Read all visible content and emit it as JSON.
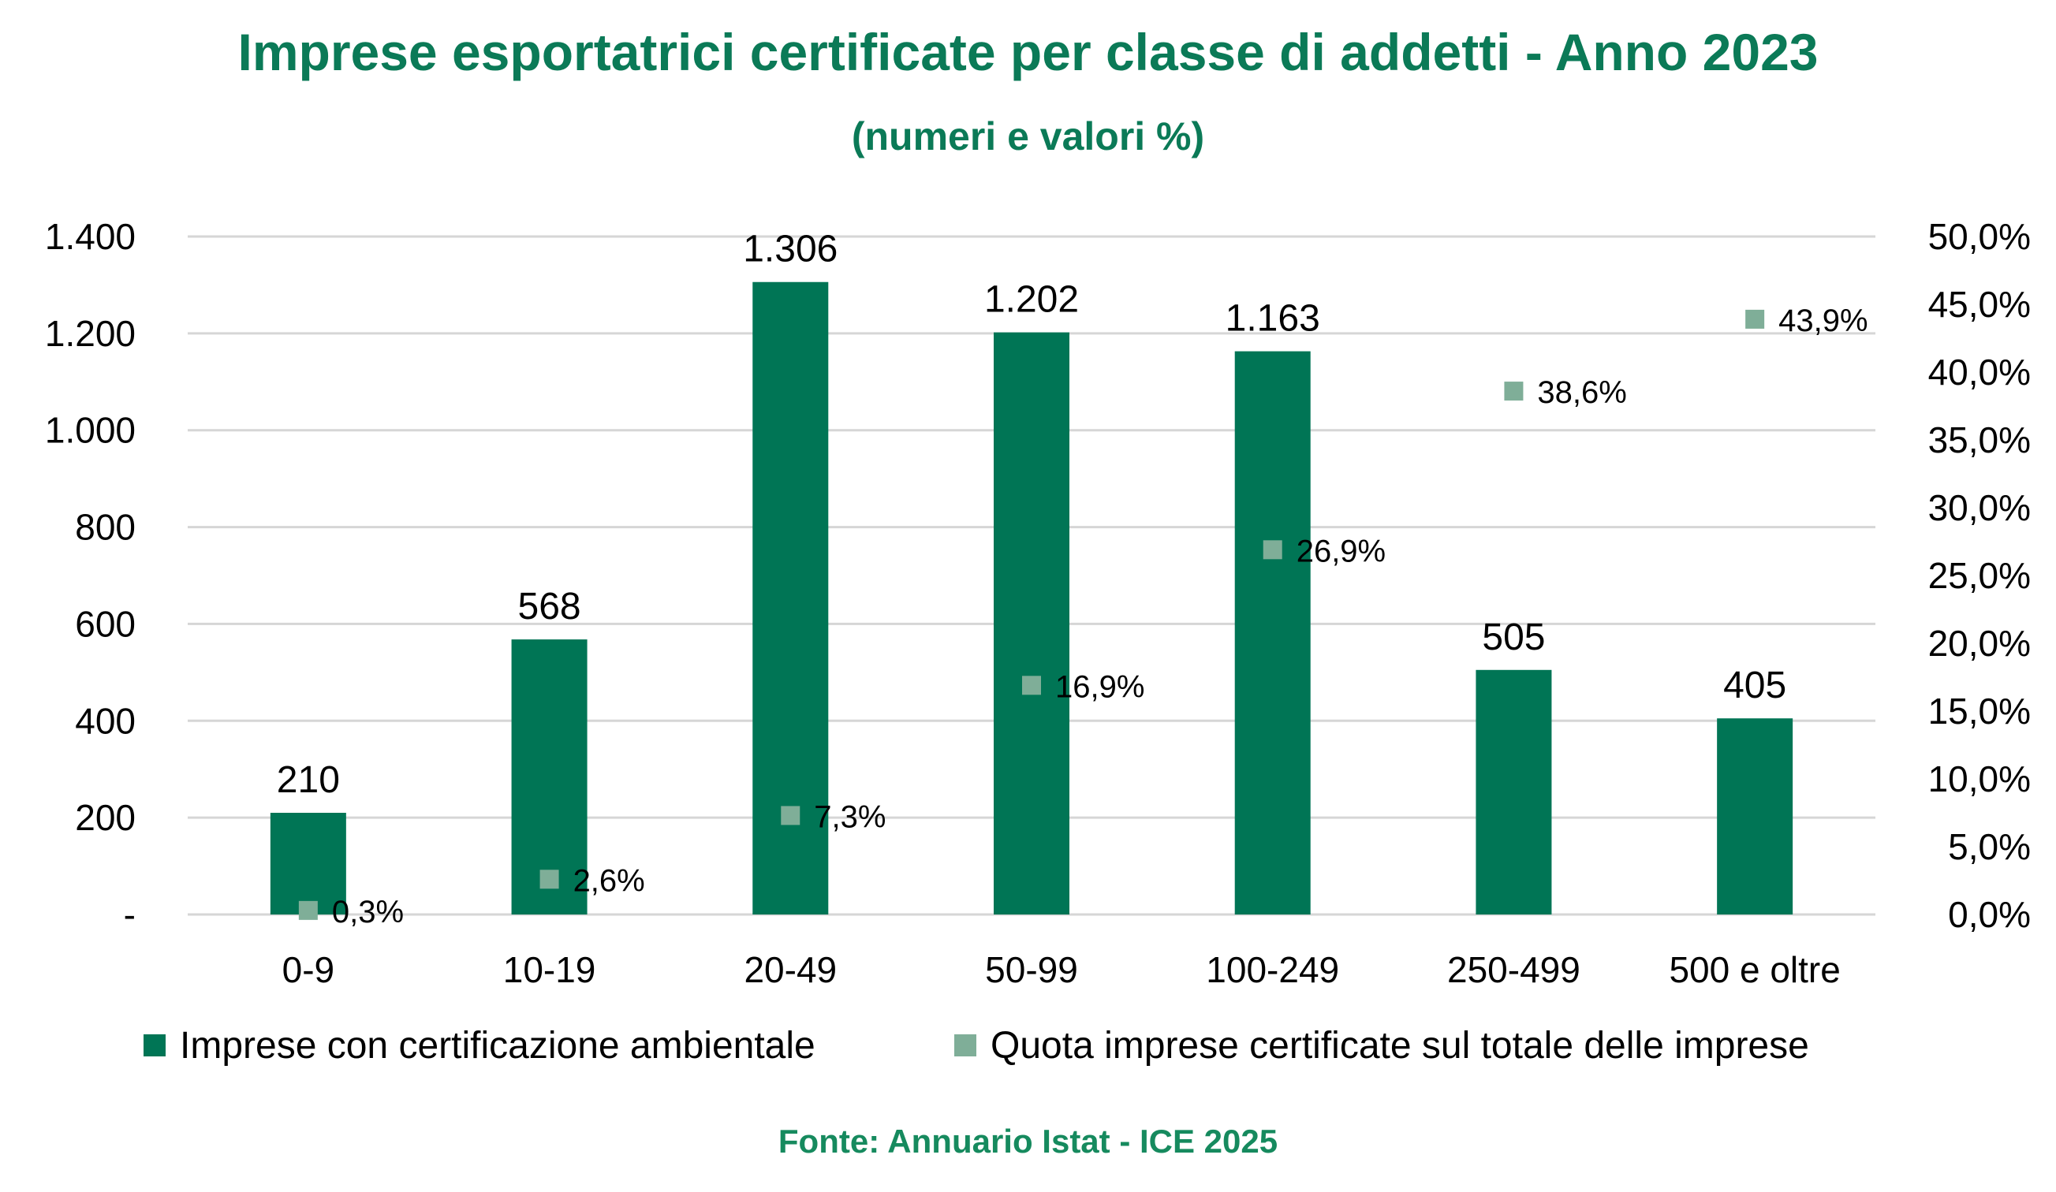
{
  "title": "Imprese esportatrici certificate per classe di addetti - Anno 2023",
  "subtitle": "(numeri e valori %)",
  "source": "Fonte: Annuario Istat - ICE 2025",
  "colors": {
    "title": "#0b7a57",
    "bars": "#007555",
    "markers": "#7fae98",
    "gridlines": "#d6d6d6",
    "text": "#000000"
  },
  "chart_data": {
    "type": "bar",
    "combo": "bar + scatter markers on secondary axis",
    "title": "Imprese esportatrici certificate per classe di addetti - Anno 2023",
    "subtitle": "(numeri e valori %)",
    "categories": [
      "0-9",
      "10-19",
      "20-49",
      "50-99",
      "100-249",
      "250-499",
      "500 e oltre"
    ],
    "series": [
      {
        "name": "Imprese con certificazione ambientale",
        "type": "bar",
        "axis": "left",
        "values": [
          210,
          568,
          1306,
          1202,
          1163,
          505,
          405
        ],
        "labels": [
          "210",
          "568",
          "1.306",
          "1.202",
          "1.163",
          "505",
          "405"
        ]
      },
      {
        "name": "Quota imprese certificate sul totale delle imprese",
        "type": "marker",
        "axis": "right",
        "values": [
          0.3,
          2.6,
          7.3,
          16.9,
          26.9,
          38.6,
          43.9
        ],
        "labels": [
          "0,3%",
          "2,6%",
          "7,3%",
          "16,9%",
          "26,9%",
          "38,6%",
          "43,9%"
        ]
      }
    ],
    "y_left": {
      "ylim": [
        0,
        1400
      ],
      "ticks": [
        0,
        200,
        400,
        600,
        800,
        1000,
        1200,
        1400
      ],
      "tick_labels": [
        "-",
        "200",
        "400",
        "600",
        "800",
        "1.000",
        "1.200",
        "1.400"
      ]
    },
    "y_right": {
      "ylim": [
        0,
        50
      ],
      "ticks": [
        0,
        5,
        10,
        15,
        20,
        25,
        30,
        35,
        40,
        45,
        50
      ],
      "tick_labels": [
        "0,0%",
        "5,0%",
        "10,0%",
        "15,0%",
        "20,0%",
        "25,0%",
        "30,0%",
        "35,0%",
        "40,0%",
        "45,0%",
        "50,0%"
      ]
    },
    "grid": true,
    "legend_position": "bottom"
  }
}
